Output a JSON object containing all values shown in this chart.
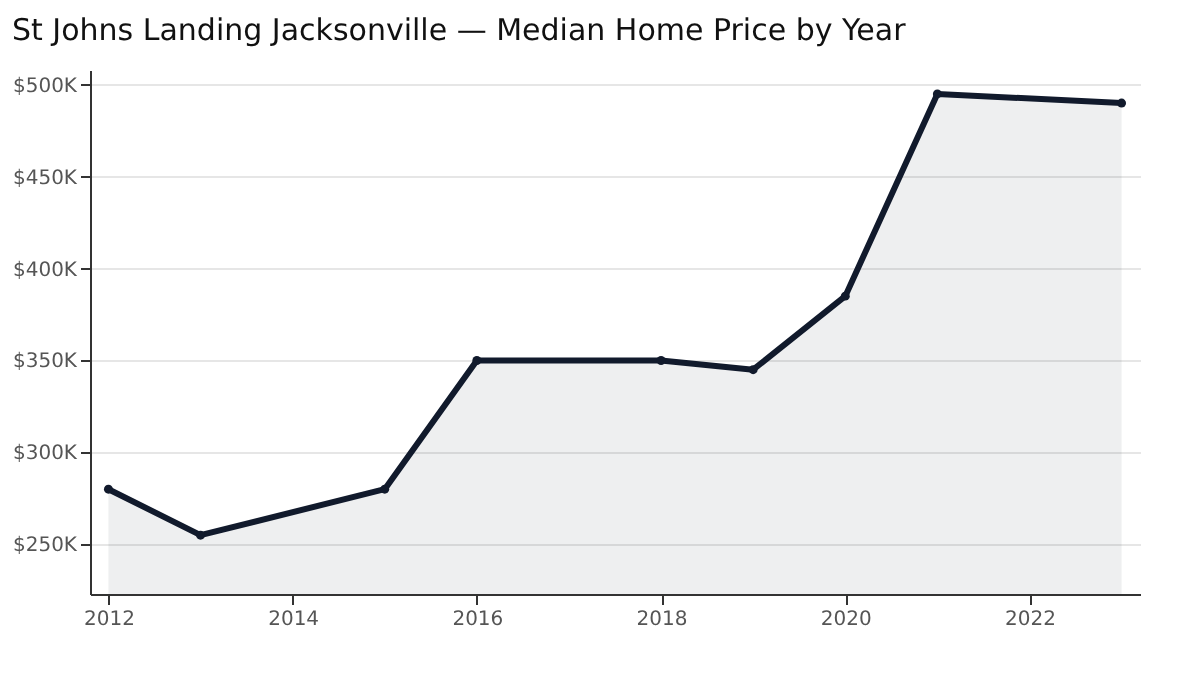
{
  "chart_data": {
    "type": "area",
    "title": "St Johns Landing Jacksonville — Median Home Price by Year",
    "x": [
      2012,
      2013,
      2015,
      2016,
      2018,
      2019,
      2020,
      2021,
      2023
    ],
    "series": [
      {
        "color": "#111a2c",
        "values": [
          280000,
          255000,
          280000,
          350000,
          350000,
          345000,
          385000,
          495000,
          490000
        ]
      }
    ],
    "xlim": [
      2011.8,
      2023.2
    ],
    "xticks": [
      2012,
      2014,
      2016,
      2018,
      2020,
      2022
    ],
    "ylim": [
      223000,
      508000
    ],
    "yticks": [
      {
        "value": 250000,
        "label": "$250K"
      },
      {
        "value": 300000,
        "label": "$300K"
      },
      {
        "value": 350000,
        "label": "$350K"
      },
      {
        "value": 400000,
        "label": "$400K"
      },
      {
        "value": 450000,
        "label": "$450K"
      },
      {
        "value": 500000,
        "label": "$500K"
      }
    ],
    "grid": "y",
    "marker": "circle",
    "line_style": "solid"
  }
}
